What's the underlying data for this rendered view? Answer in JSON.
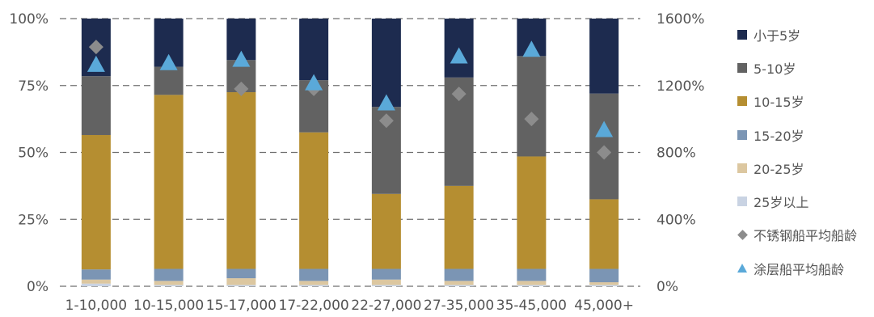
{
  "chart_data": {
    "type": "bar",
    "stacked": true,
    "categories": [
      "1-10,000",
      "10-15,000",
      "15-17,000",
      "17-22,000",
      "22-27,000",
      "27-35,000",
      "35-45,000",
      "45,000+"
    ],
    "series": [
      {
        "name": "25岁以上",
        "color": "#c9d3e3",
        "values": [
          1.0,
          0.5,
          0.5,
          0.5,
          0.5,
          0.5,
          0.5,
          0.5
        ]
      },
      {
        "name": "20-25岁",
        "color": "#dcc7a0",
        "values": [
          1.5,
          1.5,
          2.5,
          1.5,
          2.0,
          1.5,
          1.5,
          1.0
        ]
      },
      {
        "name": "15-20岁",
        "color": "#7b95b4",
        "values": [
          3.8,
          4.5,
          3.5,
          4.5,
          4.0,
          4.5,
          4.5,
          5.0
        ]
      },
      {
        "name": "10-15岁",
        "color": "#b58e31",
        "values": [
          50.2,
          65.0,
          66.0,
          51.0,
          28.0,
          31.0,
          42.0,
          26.0
        ]
      },
      {
        "name": "5-10岁",
        "color": "#626262",
        "values": [
          22.0,
          10.5,
          12.0,
          19.5,
          32.5,
          40.5,
          37.5,
          39.5
        ]
      },
      {
        "name": "小于5岁",
        "color": "#1d2b4f",
        "values": [
          21.5,
          18.0,
          15.5,
          23.0,
          33.0,
          22.0,
          14.0,
          28.0
        ]
      }
    ],
    "line_series": [
      {
        "name": "不锈钢船平均船龄",
        "marker": "diamond",
        "color": "#8c8c8c",
        "values": [
          1430,
          null,
          1180,
          1180,
          990,
          1150,
          1000,
          800
        ]
      },
      {
        "name": "涂层船平均船龄",
        "marker": "triangle",
        "color": "#5aa9d9",
        "values": [
          1330,
          1340,
          1360,
          1220,
          1100,
          1380,
          1420,
          940
        ]
      }
    ],
    "y_left": {
      "ticks": [
        "0%",
        "25%",
        "50%",
        "75%",
        "100%"
      ],
      "range": [
        0,
        100
      ]
    },
    "y_right": {
      "ticks": [
        "0%",
        "400%",
        "800%",
        "1200%",
        "1600%"
      ],
      "range": [
        0,
        1600
      ]
    },
    "grid": "dashed horizontal",
    "legend_position": "right"
  },
  "legend": [
    {
      "label": "小于5岁",
      "color": "#1d2b4f",
      "shape": "square"
    },
    {
      "label": "5-10岁",
      "color": "#626262",
      "shape": "square"
    },
    {
      "label": "10-15岁",
      "color": "#b58e31",
      "shape": "square"
    },
    {
      "label": "15-20岁",
      "color": "#7b95b4",
      "shape": "square"
    },
    {
      "label": "20-25岁",
      "color": "#dcc7a0",
      "shape": "square"
    },
    {
      "label": "25岁以上",
      "color": "#c9d3e3",
      "shape": "square"
    },
    {
      "label": "不锈钢船平均船龄",
      "color": "#8c8c8c",
      "shape": "diamond"
    },
    {
      "label": "涂层船平均船龄",
      "color": "#5aa9d9",
      "shape": "triangle"
    }
  ]
}
